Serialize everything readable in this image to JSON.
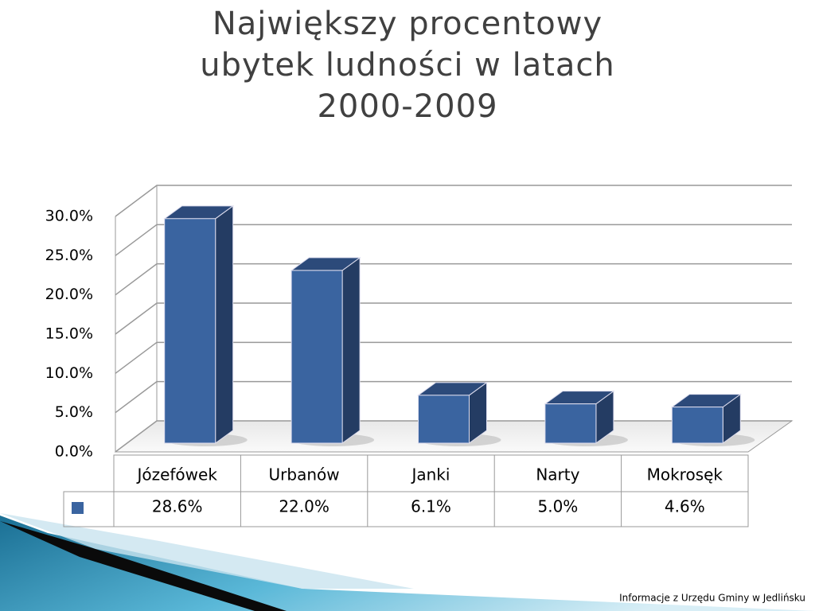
{
  "chart_data": {
    "type": "bar3d",
    "title": "Największy procentowy\nubytek ludności w latach\n2000-2009",
    "categories": [
      "Józefówek",
      "Urbanów",
      "Janki",
      "Narty",
      "Mokrosęk"
    ],
    "values": [
      28.6,
      22.0,
      6.1,
      5.0,
      4.6
    ],
    "value_labels": [
      "28.6%",
      "22.0%",
      "6.1%",
      "5.0%",
      "4.6%"
    ],
    "color": "#3a64a0",
    "ylim": [
      0,
      30
    ],
    "yticks": [
      {
        "value": 0,
        "label": "0.0%"
      },
      {
        "value": 5,
        "label": "5.0%"
      },
      {
        "value": 10,
        "label": "10.0%"
      },
      {
        "value": 15,
        "label": "15.0%"
      },
      {
        "value": 20,
        "label": "20.0%"
      },
      {
        "value": 25,
        "label": "25.0%"
      },
      {
        "value": 30,
        "label": "30.0%"
      }
    ],
    "grid": true,
    "footer": "Informacje z Urzędu Gminy w Jedlińsku"
  }
}
